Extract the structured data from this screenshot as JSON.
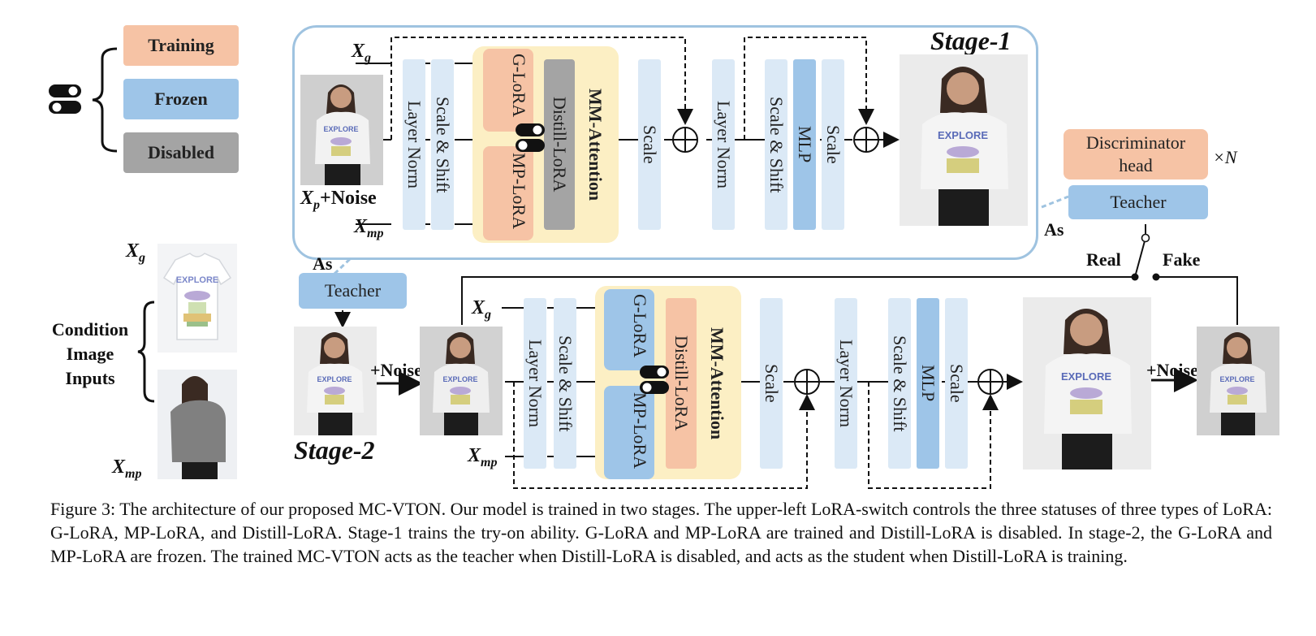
{
  "legend": {
    "training": "Training",
    "frozen": "Frozen",
    "disabled": "Disabled",
    "colors": {
      "training": "#f6c3a5",
      "frozen": "#9ec5e8",
      "disabled": "#a4a4a4",
      "light_blue": "#dbe9f6",
      "attention_bg": "#fcefc4"
    }
  },
  "condition": {
    "xg_base": "X",
    "xg_sub": "g",
    "xmp_base": "X",
    "xmp_sub": "mp",
    "label_line1": "Condition",
    "label_line2": "Image",
    "label_line3": "Inputs"
  },
  "stage1": {
    "title": "Stage-1",
    "xg_base": "X",
    "xg_sub": "g",
    "xmp_base": "X",
    "xmp_sub": "mp",
    "xp_base": "X",
    "xp_sub": "p",
    "xp_suffix": "+Noise",
    "blocks": {
      "layer_norm": "Layer Norm",
      "scale_shift": "Scale & Shift",
      "g_lora": "G-LoRA",
      "mp_lora": "MP-LoRA",
      "distill_lora": "Distill-LoRA",
      "mm_attention": "MM-Attention",
      "scale": "Scale",
      "layer_norm_2": "Layer Norm",
      "scale_shift_2": "Scale & Shift",
      "mlp": "MLP",
      "scale_2": "Scale"
    },
    "as_label": "As"
  },
  "stage2": {
    "title": "Stage-2",
    "teacher": "Teacher",
    "as_label": "As",
    "noise_in": "+Noise",
    "noise_out": "+Noise",
    "xg_base": "X",
    "xg_sub": "g",
    "xmp_base": "X",
    "xmp_sub": "mp",
    "blocks": {
      "layer_norm": "Layer Norm",
      "scale_shift": "Scale & Shift",
      "g_lora": "G-LoRA",
      "mp_lora": "MP-LoRA",
      "distill_lora": "Distill-LoRA",
      "mm_attention": "MM-Attention",
      "scale": "Scale",
      "layer_norm_2": "Layer Norm",
      "scale_shift_2": "Scale & Shift",
      "mlp": "MLP",
      "scale_2": "Scale"
    }
  },
  "discriminator": {
    "head_line1": "Discriminator",
    "head_line2": "head",
    "multiplier": "×N",
    "teacher": "Teacher",
    "real": "Real",
    "fake": "Fake"
  },
  "caption": "Figure 3: The architecture of our proposed MC-VTON. Our model is trained in two stages. The upper-left LoRA-switch controls the three statuses of three types of LoRA: G-LoRA, MP-LoRA, and Distill-LoRA. Stage-1 trains the try-on ability. G-LoRA and MP-LoRA are trained and Distill-LoRA is disabled. In stage-2, the G-LoRA and MP-LoRA are frozen. The trained MC-VTON acts as the teacher when Distill-LoRA is disabled, and acts as the student when Distill-LoRA is training."
}
